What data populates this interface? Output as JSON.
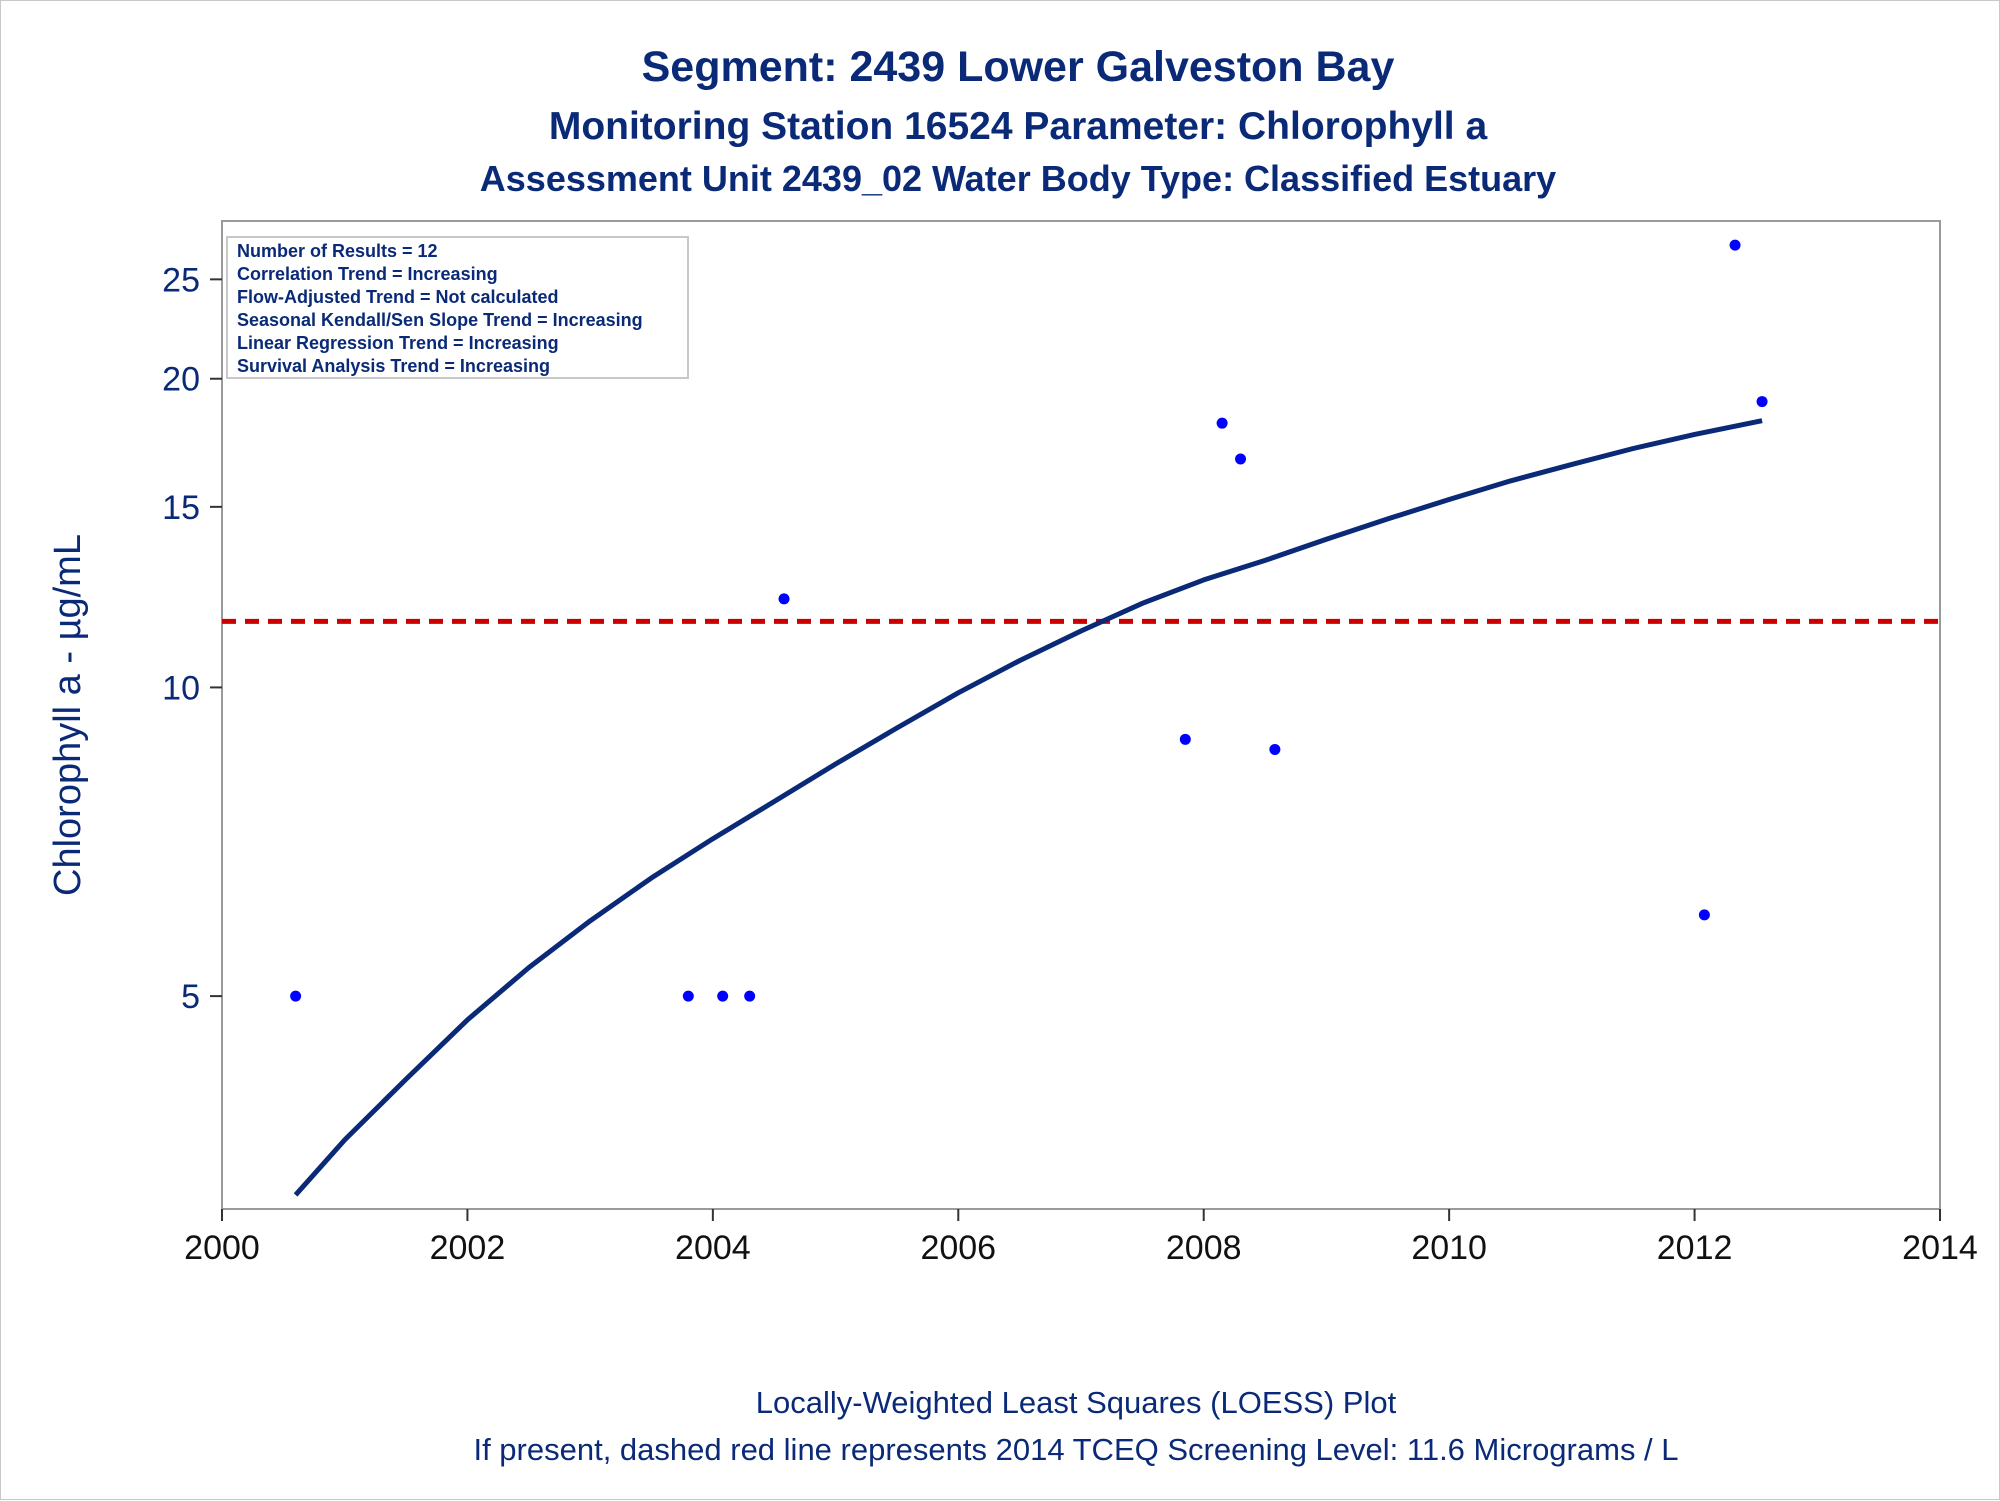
{
  "titles": [
    "Segment: 2439  Lower Galveston Bay",
    "Monitoring Station 16524 Parameter: Chlorophyll a",
    "Assessment Unit 2439_02   Water Body Type: Classified Estuary"
  ],
  "legend": [
    "Number of Results = 12",
    "Correlation Trend = Increasing",
    "Flow-Adjusted Trend = Not calculated",
    "Seasonal Kendall/Sen Slope Trend = Increasing",
    "Linear Regression Trend = Increasing",
    "Survival Analysis Trend = Increasing"
  ],
  "footnotes": [
    "Locally-Weighted Least Squares (LOESS) Plot",
    "If present, dashed red line represents 2014 TCEQ Screening Level: 11.6 Micrograms / L"
  ],
  "colors": {
    "text": "#0a2a78",
    "points": "#0000ff",
    "loess": "#0a2a78",
    "screening": "#cc0000",
    "frame": "#9a9a9a"
  },
  "chart_data": {
    "type": "scatter",
    "ylabel": "Chlorophyll a -  µg/mL",
    "xlabel": "",
    "y_scale": "log",
    "xlim": [
      2000,
      2014
    ],
    "ylim": [
      3.1,
      28.5
    ],
    "x_ticks": [
      2000,
      2002,
      2004,
      2006,
      2008,
      2010,
      2012,
      2014
    ],
    "y_ticks": [
      5,
      10,
      15,
      20,
      25
    ],
    "grid": false,
    "legend_position": "top-left",
    "series": [
      {
        "type": "scatter",
        "x": [
          2000.6,
          2003.8,
          2004.08,
          2004.3,
          2004.58,
          2007.85,
          2008.15,
          2008.3,
          2008.58,
          2012.08,
          2012.33,
          2012.55
        ],
        "y": [
          5.0,
          5.0,
          5.0,
          5.0,
          12.2,
          8.9,
          18.1,
          16.7,
          8.7,
          6.0,
          27.0,
          19.0
        ]
      },
      {
        "type": "line",
        "x": [
          2000.6,
          2001.0,
          2001.5,
          2002.0,
          2002.5,
          2003.0,
          2003.5,
          2004.0,
          2004.5,
          2005.0,
          2005.5,
          2006.0,
          2006.5,
          2007.0,
          2007.5,
          2008.0,
          2008.5,
          2009.0,
          2009.5,
          2010.0,
          2010.5,
          2011.0,
          2011.5,
          2012.0,
          2012.55
        ],
        "y": [
          3.2,
          3.62,
          4.15,
          4.74,
          5.33,
          5.92,
          6.52,
          7.12,
          7.74,
          8.42,
          9.13,
          9.88,
          10.62,
          11.35,
          12.08,
          12.73,
          13.3,
          13.95,
          14.6,
          15.25,
          15.9,
          16.5,
          17.1,
          17.65,
          18.2
        ]
      },
      {
        "type": "hline",
        "y": 11.6
      }
    ]
  }
}
